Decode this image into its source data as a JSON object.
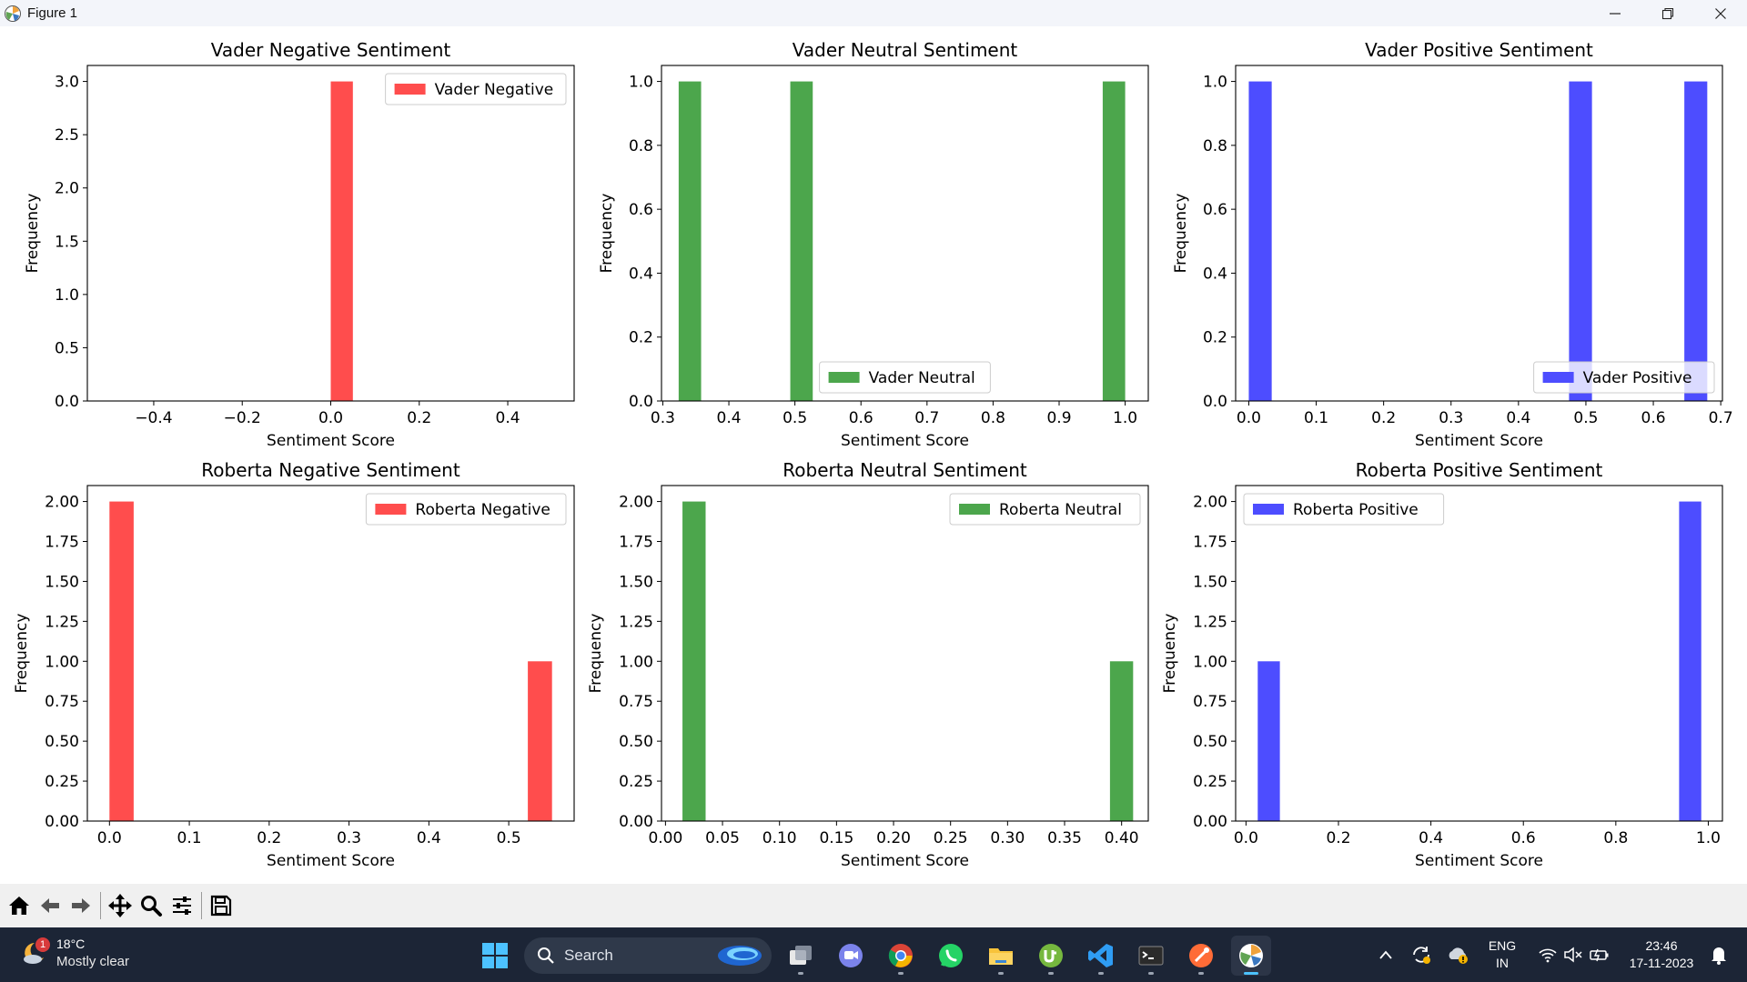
{
  "window": {
    "title": "Figure 1",
    "controls": [
      "minimize-icon",
      "restore-icon",
      "close-icon"
    ]
  },
  "colors": {
    "red": "#ff4d4d",
    "green": "#4ca64c",
    "blue": "#4d4dff",
    "taskbar": "#1c2536",
    "toolbar": "#f0f0f0"
  },
  "chart_data": [
    {
      "type": "bar",
      "title": "Vader Negative Sentiment",
      "xlabel": "Sentiment Score",
      "ylabel": "Frequency",
      "xlim": [
        -0.55,
        0.55
      ],
      "ylim": [
        0,
        3.15
      ],
      "xticks": [
        {
          "v": -0.4,
          "label": "−0.4"
        },
        {
          "v": -0.2,
          "label": "−0.2"
        },
        {
          "v": 0.0,
          "label": "0.0"
        },
        {
          "v": 0.2,
          "label": "0.2"
        },
        {
          "v": 0.4,
          "label": "0.4"
        }
      ],
      "yticks": [
        {
          "v": 0,
          "label": "0.0"
        },
        {
          "v": 0.5,
          "label": "0.5"
        },
        {
          "v": 1,
          "label": "1.0"
        },
        {
          "v": 1.5,
          "label": "1.5"
        },
        {
          "v": 2,
          "label": "2.0"
        },
        {
          "v": 2.5,
          "label": "2.5"
        },
        {
          "v": 3,
          "label": "3.0"
        }
      ],
      "bars": [
        {
          "x0": 0.0,
          "x1": 0.05,
          "value": 3
        }
      ],
      "color": "#ff4d4d",
      "legend": {
        "label": "Vader Negative",
        "loc": "upper right"
      }
    },
    {
      "type": "bar",
      "title": "Vader Neutral Sentiment",
      "xlabel": "Sentiment Score",
      "ylabel": "Frequency",
      "xlim": [
        0.298,
        1.035
      ],
      "ylim": [
        0,
        1.05
      ],
      "xticks": [
        {
          "v": 0.3,
          "label": "0.3"
        },
        {
          "v": 0.4,
          "label": "0.4"
        },
        {
          "v": 0.5,
          "label": "0.5"
        },
        {
          "v": 0.6,
          "label": "0.6"
        },
        {
          "v": 0.7,
          "label": "0.7"
        },
        {
          "v": 0.8,
          "label": "0.8"
        },
        {
          "v": 0.9,
          "label": "0.9"
        },
        {
          "v": 1.0,
          "label": "1.0"
        }
      ],
      "yticks": [
        {
          "v": 0,
          "label": "0.0"
        },
        {
          "v": 0.2,
          "label": "0.2"
        },
        {
          "v": 0.4,
          "label": "0.4"
        },
        {
          "v": 0.6,
          "label": "0.6"
        },
        {
          "v": 0.8,
          "label": "0.8"
        },
        {
          "v": 1,
          "label": "1.0"
        }
      ],
      "bars": [
        {
          "x0": 0.324,
          "x1": 0.358,
          "value": 1
        },
        {
          "x0": 0.493,
          "x1": 0.527,
          "value": 1
        },
        {
          "x0": 0.966,
          "x1": 1.0,
          "value": 1
        }
      ],
      "color": "#4ca64c",
      "legend": {
        "label": "Vader Neutral",
        "loc": "lower center"
      }
    },
    {
      "type": "bar",
      "title": "Vader Positive Sentiment",
      "xlabel": "Sentiment Score",
      "ylabel": "Frequency",
      "xlim": [
        -0.0195,
        0.7025
      ],
      "ylim": [
        0,
        1.05
      ],
      "xticks": [
        {
          "v": 0.0,
          "label": "0.0"
        },
        {
          "v": 0.1,
          "label": "0.1"
        },
        {
          "v": 0.2,
          "label": "0.2"
        },
        {
          "v": 0.3,
          "label": "0.3"
        },
        {
          "v": 0.4,
          "label": "0.4"
        },
        {
          "v": 0.5,
          "label": "0.5"
        },
        {
          "v": 0.6,
          "label": "0.6"
        },
        {
          "v": 0.7,
          "label": "0.7"
        }
      ],
      "yticks": [
        {
          "v": 0,
          "label": "0.0"
        },
        {
          "v": 0.2,
          "label": "0.2"
        },
        {
          "v": 0.4,
          "label": "0.4"
        },
        {
          "v": 0.6,
          "label": "0.6"
        },
        {
          "v": 0.8,
          "label": "0.8"
        },
        {
          "v": 1,
          "label": "1.0"
        }
      ],
      "bars": [
        {
          "x0": 0.0,
          "x1": 0.034,
          "value": 1
        },
        {
          "x0": 0.475,
          "x1": 0.509,
          "value": 1
        },
        {
          "x0": 0.646,
          "x1": 0.68,
          "value": 1
        }
      ],
      "color": "#4d4dff",
      "legend": {
        "label": "Vader Positive",
        "loc": "lower right"
      }
    },
    {
      "type": "bar",
      "title": "Roberta Negative Sentiment",
      "xlabel": "Sentiment Score",
      "ylabel": "Frequency",
      "xlim": [
        -0.0277,
        0.5819
      ],
      "ylim": [
        0,
        2.1
      ],
      "xticks": [
        {
          "v": 0.0,
          "label": "0.0"
        },
        {
          "v": 0.1,
          "label": "0.1"
        },
        {
          "v": 0.2,
          "label": "0.2"
        },
        {
          "v": 0.3,
          "label": "0.3"
        },
        {
          "v": 0.4,
          "label": "0.4"
        },
        {
          "v": 0.5,
          "label": "0.5"
        }
      ],
      "yticks": [
        {
          "v": 0,
          "label": "0.00"
        },
        {
          "v": 0.25,
          "label": "0.25"
        },
        {
          "v": 0.5,
          "label": "0.50"
        },
        {
          "v": 0.75,
          "label": "0.75"
        },
        {
          "v": 1,
          "label": "1.00"
        },
        {
          "v": 1.25,
          "label": "1.25"
        },
        {
          "v": 1.5,
          "label": "1.50"
        },
        {
          "v": 1.75,
          "label": "1.75"
        },
        {
          "v": 2,
          "label": "2.00"
        }
      ],
      "bars": [
        {
          "x0": 0.0,
          "x1": 0.0303,
          "value": 2
        },
        {
          "x0": 0.5239,
          "x1": 0.5542,
          "value": 1
        }
      ],
      "color": "#ff4d4d",
      "legend": {
        "label": "Roberta Negative",
        "loc": "upper right"
      }
    },
    {
      "type": "bar",
      "title": "Roberta Neutral Sentiment",
      "xlabel": "Sentiment Score",
      "ylabel": "Frequency",
      "xlim": [
        -0.0035,
        0.4234
      ],
      "ylim": [
        0,
        2.1
      ],
      "xticks": [
        {
          "v": 0.0,
          "label": "0.00"
        },
        {
          "v": 0.05,
          "label": "0.05"
        },
        {
          "v": 0.1,
          "label": "0.10"
        },
        {
          "v": 0.15,
          "label": "0.15"
        },
        {
          "v": 0.2,
          "label": "0.20"
        },
        {
          "v": 0.25,
          "label": "0.25"
        },
        {
          "v": 0.3,
          "label": "0.30"
        },
        {
          "v": 0.35,
          "label": "0.35"
        },
        {
          "v": 0.4,
          "label": "0.40"
        }
      ],
      "yticks": [
        {
          "v": 0,
          "label": "0.00"
        },
        {
          "v": 0.25,
          "label": "0.25"
        },
        {
          "v": 0.5,
          "label": "0.50"
        },
        {
          "v": 0.75,
          "label": "0.75"
        },
        {
          "v": 1,
          "label": "1.00"
        },
        {
          "v": 1.25,
          "label": "1.25"
        },
        {
          "v": 1.5,
          "label": "1.50"
        },
        {
          "v": 1.75,
          "label": "1.75"
        },
        {
          "v": 2,
          "label": "2.00"
        }
      ],
      "bars": [
        {
          "x0": 0.0149,
          "x1": 0.0352,
          "value": 2
        },
        {
          "x0": 0.3898,
          "x1": 0.4101,
          "value": 1
        }
      ],
      "color": "#4ca64c",
      "legend": {
        "label": "Roberta Neutral",
        "loc": "upper right"
      }
    },
    {
      "type": "bar",
      "title": "Roberta Positive Sentiment",
      "xlabel": "Sentiment Score",
      "ylabel": "Frequency",
      "xlim": [
        -0.0224,
        1.0306
      ],
      "ylim": [
        0,
        2.1
      ],
      "xticks": [
        {
          "v": 0.0,
          "label": "0.0"
        },
        {
          "v": 0.2,
          "label": "0.2"
        },
        {
          "v": 0.4,
          "label": "0.4"
        },
        {
          "v": 0.6,
          "label": "0.6"
        },
        {
          "v": 0.8,
          "label": "0.8"
        },
        {
          "v": 1.0,
          "label": "1.0"
        }
      ],
      "yticks": [
        {
          "v": 0,
          "label": "0.00"
        },
        {
          "v": 0.25,
          "label": "0.25"
        },
        {
          "v": 0.5,
          "label": "0.50"
        },
        {
          "v": 0.75,
          "label": "0.75"
        },
        {
          "v": 1,
          "label": "1.00"
        },
        {
          "v": 1.25,
          "label": "1.25"
        },
        {
          "v": 1.5,
          "label": "1.50"
        },
        {
          "v": 1.75,
          "label": "1.75"
        },
        {
          "v": 2,
          "label": "2.00"
        }
      ],
      "bars": [
        {
          "x0": 0.0254,
          "x1": 0.0733,
          "value": 1
        },
        {
          "x0": 0.9369,
          "x1": 0.9848,
          "value": 2
        }
      ],
      "color": "#4d4dff",
      "legend": {
        "label": "Roberta Positive",
        "loc": "upper left"
      }
    }
  ],
  "toolbar": {
    "tools": [
      "home-icon",
      "back-icon",
      "forward-icon",
      "pan-icon",
      "zoom-icon",
      "configure-subplots-icon",
      "save-icon"
    ]
  },
  "taskbar": {
    "weather": {
      "temp": "18°C",
      "condition": "Mostly clear",
      "badge": "1"
    },
    "search": {
      "label": "Search"
    },
    "tray": {
      "language": "ENG",
      "region": "IN",
      "time": "23:46",
      "date": "17-11-2023"
    }
  }
}
